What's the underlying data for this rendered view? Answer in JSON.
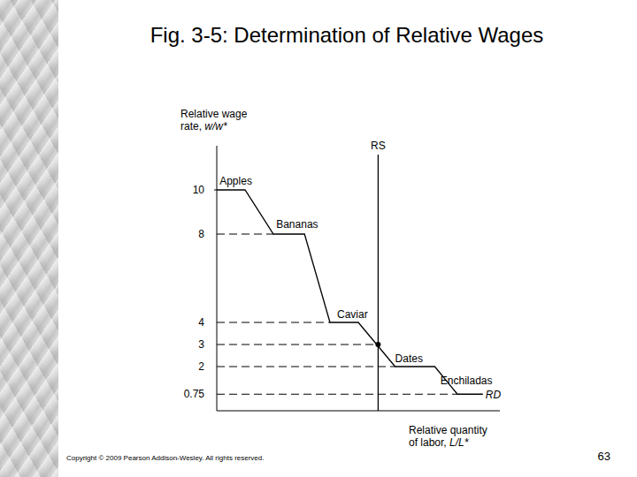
{
  "slide": {
    "copyright": "Copyright © 2009 Pearson Addison-Wesley. All rights reserved.",
    "page_number": 63
  },
  "chart_data": {
    "type": "line",
    "title": "Fig. 3-5: Determination of Relative Wages",
    "y_label": [
      "Relative wage",
      "rate, w/w*"
    ],
    "x_label": [
      "Relative quantity",
      "of labor, L/L*"
    ],
    "xlim": [
      0,
      10
    ],
    "ylim": [
      0,
      12
    ],
    "yticks": [
      10,
      8,
      4,
      3,
      2,
      0.75
    ],
    "tick_labels": "y",
    "grid": false,
    "series": [
      {
        "name": "RD",
        "color": "#000000",
        "x": [
          0,
          1,
          2,
          3.1,
          4,
          5,
          6.3,
          7.7,
          8.5,
          9.4
        ],
        "values": [
          10,
          10,
          8,
          8,
          4,
          4,
          2,
          2,
          0.75,
          0.75
        ]
      },
      {
        "name": "RS",
        "color": "#000000",
        "x": [
          5.7,
          5.7
        ],
        "values": [
          0,
          11.6
        ]
      }
    ],
    "equilibrium": {
      "x": 5.7,
      "y": 3
    },
    "annotations": [
      {
        "text": "Apples",
        "x": 0.1,
        "y": 10.25
      },
      {
        "text": "Bananas",
        "x": 2.1,
        "y": 8.3
      },
      {
        "text": "Caviar",
        "x": 4.25,
        "y": 4.2
      },
      {
        "text": "Dates",
        "x": 6.3,
        "y": 2.2
      },
      {
        "text": "Enchiladas",
        "x": 7.9,
        "y": 1.2
      }
    ]
  }
}
